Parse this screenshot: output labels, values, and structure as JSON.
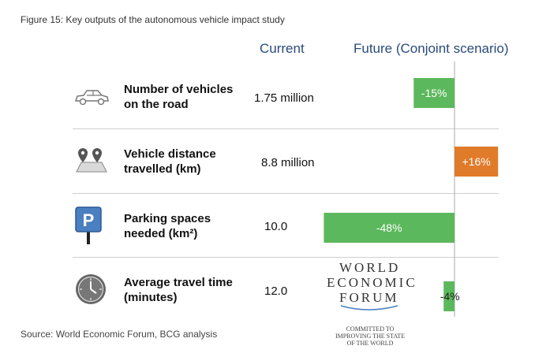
{
  "title": "Figure 15: Key outputs of the autonomous vehicle impact study",
  "headers": {
    "current": "Current",
    "future": "Future (Conjoint scenario)"
  },
  "source": "Source: World Economic Forum, BCG analysis",
  "logo": {
    "line1": "WORLD",
    "line2": "ECONOMIC",
    "line3": "FORUM",
    "tagline1": "COMMITTED TO",
    "tagline2": "IMPROVING THE STATE",
    "tagline3": "OF THE WORLD"
  },
  "rows": [
    {
      "label1": "Number of vehicles",
      "label2": "on the road",
      "current": "1.75 million",
      "icon": "car-icon"
    },
    {
      "label1": "Vehicle distance",
      "label2": "travelled (km)",
      "current": "8.8 million",
      "icon": "map-pin-icon"
    },
    {
      "label1": "Parking spaces",
      "label2": "needed (km²)",
      "current": "10.0",
      "icon": "parking-icon"
    },
    {
      "label1": "Average travel time",
      "label2": "(minutes)",
      "current": "12.0",
      "icon": "clock-icon"
    }
  ],
  "colors": {
    "negative": "#5cb85c",
    "positive": "#e07b2a",
    "header": "#2a4a7a"
  },
  "chart_data": {
    "type": "bar",
    "orientation": "horizontal",
    "categories": [
      "Number of vehicles on the road",
      "Vehicle distance travelled (km)",
      "Parking spaces needed (km²)",
      "Average travel time (minutes)"
    ],
    "values": [
      -15,
      16,
      -48,
      -4
    ],
    "data_labels": [
      "-15%",
      "+16%",
      "-48%",
      "-4%"
    ],
    "unit": "%"
  }
}
